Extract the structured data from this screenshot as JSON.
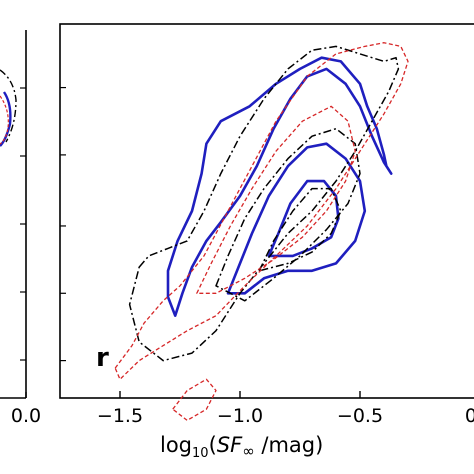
{
  "chart_data": {
    "type": "contour",
    "panel_label": "r",
    "xlabel_prefix": "log",
    "xlabel_sub": "10",
    "xlabel_sf": "SF",
    "xlabel_inf": "∞",
    "xlabel_unit": " /mag)",
    "xlim": [
      -1.75,
      0.0
    ],
    "x_ticks": [
      "−1.5",
      "−1.0",
      "−0.5",
      "0.0"
    ],
    "x_tick_values": [
      -1.5,
      -1.0,
      -0.5,
      0.0
    ],
    "left_panel_x_tick": "0.0",
    "series": [
      {
        "style": "solid",
        "color": "#1f1fbf",
        "contours": [
          [
            [
              -1.27,
              0.78
            ],
            [
              -1.24,
              0.72
            ],
            [
              -1.2,
              0.65
            ],
            [
              -1.14,
              0.58
            ],
            [
              -1.08,
              0.53
            ],
            [
              -1.0,
              0.46
            ],
            [
              -0.93,
              0.38
            ],
            [
              -0.86,
              0.28
            ],
            [
              -0.79,
              0.2
            ],
            [
              -0.72,
              0.14
            ],
            [
              -0.64,
              0.12
            ],
            [
              -0.56,
              0.16
            ],
            [
              -0.5,
              0.22
            ],
            [
              -0.45,
              0.3
            ],
            [
              -0.4,
              0.37
            ],
            [
              -0.37,
              0.4
            ],
            [
              -0.39,
              0.38
            ],
            [
              -0.4,
              0.35
            ],
            [
              -0.43,
              0.28
            ],
            [
              -0.47,
              0.22
            ],
            [
              -0.5,
              0.16
            ],
            [
              -0.58,
              0.1
            ],
            [
              -0.66,
              0.09
            ],
            [
              -0.75,
              0.12
            ],
            [
              -0.85,
              0.16
            ],
            [
              -0.96,
              0.22
            ],
            [
              -1.08,
              0.26
            ],
            [
              -1.14,
              0.32
            ],
            [
              -1.16,
              0.4
            ],
            [
              -1.2,
              0.5
            ],
            [
              -1.26,
              0.58
            ],
            [
              -1.3,
              0.66
            ],
            [
              -1.3,
              0.73
            ],
            [
              -1.27,
              0.78
            ]
          ],
          [
            [
              -1.05,
              0.72
            ],
            [
              -1.0,
              0.64
            ],
            [
              -0.95,
              0.56
            ],
            [
              -0.88,
              0.46
            ],
            [
              -0.8,
              0.38
            ],
            [
              -0.72,
              0.33
            ],
            [
              -0.64,
              0.32
            ],
            [
              -0.56,
              0.36
            ],
            [
              -0.5,
              0.42
            ],
            [
              -0.48,
              0.5
            ],
            [
              -0.52,
              0.58
            ],
            [
              -0.6,
              0.64
            ],
            [
              -0.7,
              0.66
            ],
            [
              -0.8,
              0.66
            ],
            [
              -0.9,
              0.68
            ],
            [
              -0.98,
              0.72
            ],
            [
              -1.05,
              0.72
            ]
          ],
          [
            [
              -0.88,
              0.62
            ],
            [
              -0.84,
              0.56
            ],
            [
              -0.79,
              0.48
            ],
            [
              -0.72,
              0.42
            ],
            [
              -0.65,
              0.42
            ],
            [
              -0.6,
              0.46
            ],
            [
              -0.59,
              0.52
            ],
            [
              -0.62,
              0.57
            ],
            [
              -0.7,
              0.6
            ],
            [
              -0.78,
              0.62
            ],
            [
              -0.88,
              0.62
            ]
          ]
        ]
      },
      {
        "style": "dashdot",
        "color": "#000000",
        "contours": [
          [
            [
              -1.42,
              0.65
            ],
            [
              -1.38,
              0.62
            ],
            [
              -1.3,
              0.6
            ],
            [
              -1.22,
              0.58
            ],
            [
              -1.15,
              0.5
            ],
            [
              -1.08,
              0.4
            ],
            [
              -1.0,
              0.3
            ],
            [
              -0.9,
              0.2
            ],
            [
              -0.8,
              0.12
            ],
            [
              -0.7,
              0.07
            ],
            [
              -0.6,
              0.06
            ],
            [
              -0.5,
              0.08
            ],
            [
              -0.4,
              0.1
            ],
            [
              -0.35,
              0.09
            ],
            [
              -0.34,
              0.12
            ],
            [
              -0.38,
              0.18
            ],
            [
              -0.45,
              0.26
            ],
            [
              -0.52,
              0.34
            ],
            [
              -0.6,
              0.42
            ],
            [
              -0.7,
              0.5
            ],
            [
              -0.8,
              0.56
            ],
            [
              -0.9,
              0.64
            ],
            [
              -1.0,
              0.72
            ],
            [
              -1.1,
              0.82
            ],
            [
              -1.2,
              0.88
            ],
            [
              -1.32,
              0.9
            ],
            [
              -1.42,
              0.85
            ],
            [
              -1.46,
              0.75
            ],
            [
              -1.42,
              0.65
            ]
          ],
          [
            [
              -1.1,
              0.7
            ],
            [
              -1.05,
              0.62
            ],
            [
              -0.98,
              0.52
            ],
            [
              -0.9,
              0.44
            ],
            [
              -0.8,
              0.36
            ],
            [
              -0.7,
              0.3
            ],
            [
              -0.6,
              0.28
            ],
            [
              -0.52,
              0.32
            ],
            [
              -0.5,
              0.4
            ],
            [
              -0.55,
              0.48
            ],
            [
              -0.64,
              0.55
            ],
            [
              -0.75,
              0.62
            ],
            [
              -0.86,
              0.68
            ],
            [
              -0.98,
              0.74
            ],
            [
              -1.1,
              0.7
            ]
          ],
          [
            [
              -0.92,
              0.66
            ],
            [
              -0.86,
              0.58
            ],
            [
              -0.78,
              0.5
            ],
            [
              -0.7,
              0.44
            ],
            [
              -0.62,
              0.44
            ],
            [
              -0.58,
              0.5
            ],
            [
              -0.62,
              0.56
            ],
            [
              -0.7,
              0.61
            ],
            [
              -0.8,
              0.64
            ],
            [
              -0.92,
              0.66
            ]
          ]
        ]
      },
      {
        "style": "dashed",
        "color": "#d62728",
        "contours": [
          [
            [
              -1.52,
              0.92
            ],
            [
              -1.45,
              0.86
            ],
            [
              -1.4,
              0.8
            ],
            [
              -1.32,
              0.74
            ],
            [
              -1.25,
              0.7
            ],
            [
              -1.15,
              0.62
            ],
            [
              -1.05,
              0.5
            ],
            [
              -0.95,
              0.38
            ],
            [
              -0.85,
              0.26
            ],
            [
              -0.72,
              0.14
            ],
            [
              -0.6,
              0.08
            ],
            [
              -0.48,
              0.06
            ],
            [
              -0.4,
              0.05
            ],
            [
              -0.33,
              0.06
            ],
            [
              -0.3,
              0.1
            ],
            [
              -0.33,
              0.16
            ],
            [
              -0.4,
              0.24
            ],
            [
              -0.5,
              0.34
            ],
            [
              -0.6,
              0.44
            ],
            [
              -0.72,
              0.54
            ],
            [
              -0.85,
              0.62
            ],
            [
              -0.98,
              0.7
            ],
            [
              -1.1,
              0.78
            ],
            [
              -1.22,
              0.82
            ],
            [
              -1.32,
              0.86
            ],
            [
              -1.42,
              0.9
            ],
            [
              -1.5,
              0.95
            ],
            [
              -1.52,
              0.92
            ]
          ],
          [
            [
              -1.18,
              0.72
            ],
            [
              -1.12,
              0.64
            ],
            [
              -1.04,
              0.54
            ],
            [
              -0.95,
              0.44
            ],
            [
              -0.85,
              0.34
            ],
            [
              -0.74,
              0.26
            ],
            [
              -0.62,
              0.22
            ],
            [
              -0.55,
              0.26
            ],
            [
              -0.52,
              0.34
            ],
            [
              -0.56,
              0.42
            ],
            [
              -0.64,
              0.5
            ],
            [
              -0.74,
              0.57
            ],
            [
              -0.86,
              0.63
            ],
            [
              -0.98,
              0.68
            ],
            [
              -1.1,
              0.72
            ],
            [
              -1.18,
              0.72
            ]
          ],
          [
            [
              -1.28,
              1.03
            ],
            [
              -1.22,
              0.98
            ],
            [
              -1.14,
              0.95
            ],
            [
              -1.1,
              0.98
            ],
            [
              -1.14,
              1.03
            ],
            [
              -1.22,
              1.06
            ],
            [
              -1.28,
              1.03
            ]
          ]
        ]
      }
    ]
  }
}
